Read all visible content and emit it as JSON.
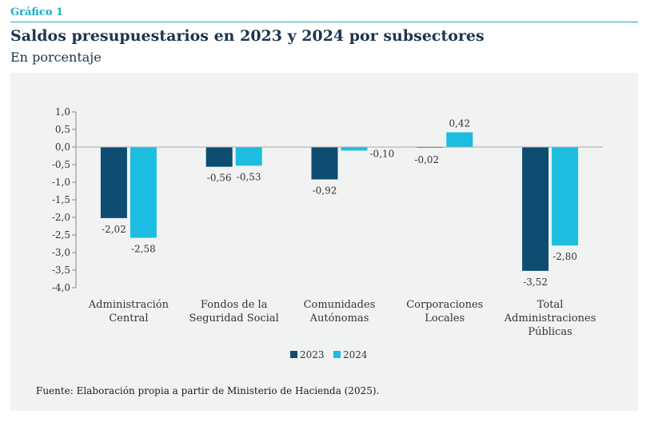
{
  "header": {
    "label": "Gráfico 1",
    "title": "Saldos presupuestarios en 2023 y 2024 por subsectores",
    "subtitle": "En porcentaje"
  },
  "chart_data": {
    "type": "bar",
    "categories": [
      [
        "Administración",
        "Central"
      ],
      [
        "Fondos de la",
        "Seguridad Social"
      ],
      [
        "Comunidades",
        "Autónomas"
      ],
      [
        "Corporaciones",
        "Locales"
      ],
      [
        "Total",
        "Administraciones",
        "Públicas"
      ]
    ],
    "series": [
      {
        "name": "2023",
        "color": "#0f4c71",
        "values": [
          -2.02,
          -0.56,
          -0.92,
          -0.02,
          -3.52
        ],
        "labels": [
          "-2,02",
          "-0,56",
          "-0,92",
          "-0,02",
          "-3,52"
        ]
      },
      {
        "name": "2024",
        "color": "#1cbde0",
        "values": [
          -2.58,
          -0.53,
          -0.1,
          0.42,
          -2.8
        ],
        "labels": [
          "-2,58",
          "-0,53",
          "-0,10",
          "0,42",
          "-2,80"
        ]
      }
    ],
    "ylim": [
      -4.0,
      1.0
    ],
    "yticks": [
      1.0,
      0.5,
      0.0,
      -0.5,
      -1.0,
      -1.5,
      -2.0,
      -2.5,
      -3.0,
      -3.5,
      -4.0
    ],
    "ytick_labels": [
      "1,0",
      "0,5",
      "0,0",
      "-0,5",
      "-1,0",
      "-1,5",
      "-2,0",
      "-2,5",
      "-3,0",
      "-3,5",
      "-4,0"
    ],
    "grid": false,
    "legend": "bottom-center"
  },
  "footer": {
    "source": "Fuente: Elaboración propia a partir de Ministerio de Hacienda (2025)."
  }
}
